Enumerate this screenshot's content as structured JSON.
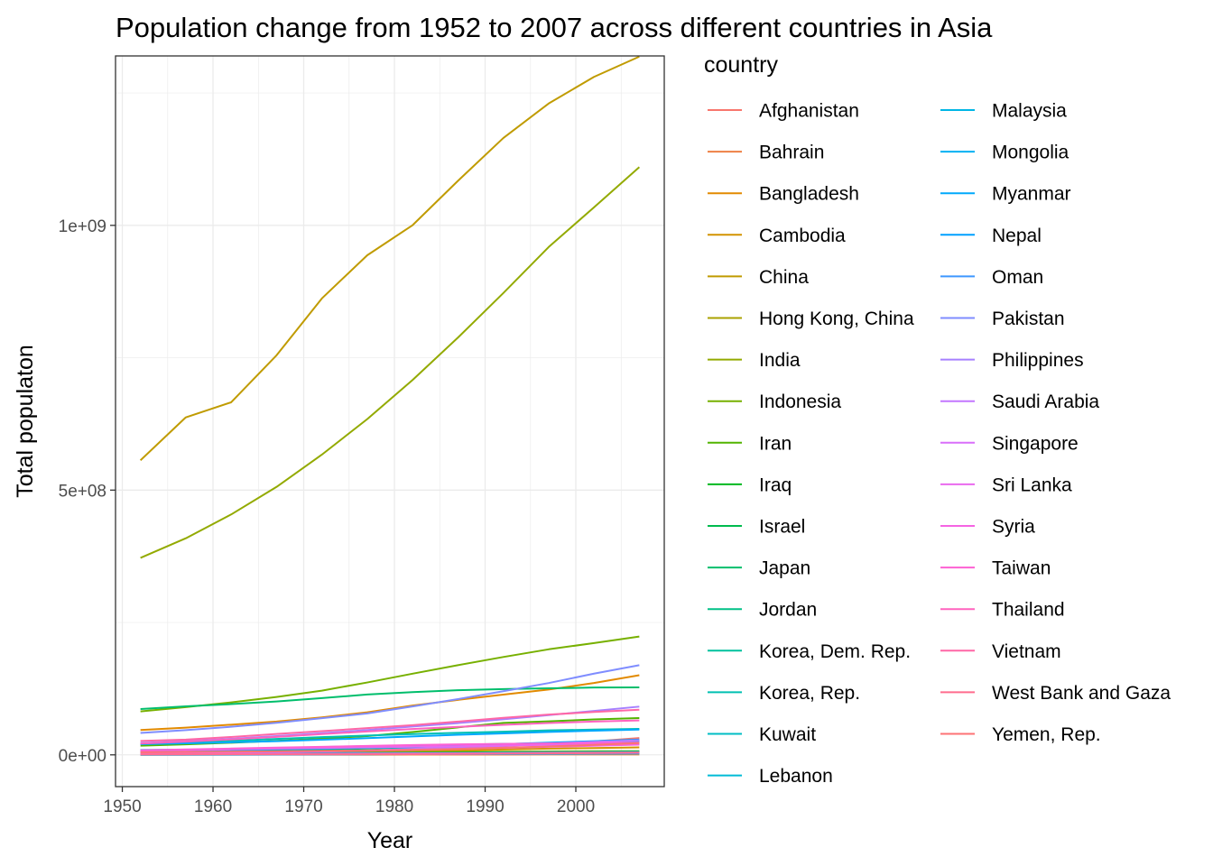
{
  "chart_data": {
    "type": "line",
    "title": "Population change from 1952 to 2007 across different countries in Asia",
    "xlabel": "Year",
    "ylabel": "Total populaton",
    "legend_title": "country",
    "legend_position": "right",
    "grid": true,
    "xlim": [
      1949.25,
      2009.75
    ],
    "ylim": [
      -60000000,
      1320000000
    ],
    "x_ticks": [
      1950,
      1960,
      1970,
      1980,
      1990,
      2000
    ],
    "x_tick_labels": [
      "1950",
      "1960",
      "1970",
      "1980",
      "1990",
      "2000"
    ],
    "y_ticks": [
      0,
      500000000,
      1000000000
    ],
    "y_tick_labels": [
      "0e+00",
      "5e+08",
      "1e+09"
    ],
    "x": [
      1952,
      1957,
      1962,
      1967,
      1972,
      1977,
      1982,
      1987,
      1992,
      1997,
      2002,
      2007
    ],
    "series": [
      {
        "name": "Afghanistan",
        "color": "#F8766D",
        "values": [
          8400000,
          9200000,
          10300000,
          11500000,
          13100000,
          14900000,
          12900000,
          13900000,
          16300000,
          22200000,
          25300000,
          31900000
        ]
      },
      {
        "name": "Bahrain",
        "color": "#EE8044",
        "values": [
          120000,
          140000,
          170000,
          200000,
          230000,
          300000,
          380000,
          450000,
          530000,
          600000,
          660000,
          710000
        ]
      },
      {
        "name": "Bangladesh",
        "color": "#E28A00",
        "values": [
          46900000,
          51400000,
          57000000,
          62800000,
          70800000,
          80400000,
          93100000,
          103800000,
          113700000,
          123300000,
          135700000,
          150400000
        ]
      },
      {
        "name": "Cambodia",
        "color": "#D29300",
        "values": [
          4700000,
          5300000,
          6100000,
          6960000,
          7450000,
          6980000,
          7270000,
          8370000,
          10150000,
          11780000,
          12930000,
          14130000
        ]
      },
      {
        "name": "China",
        "color": "#C09B00",
        "values": [
          556300000,
          637400000,
          665800000,
          754500000,
          862000000,
          943500000,
          1000300000,
          1084000000,
          1164900000,
          1230100000,
          1280400000,
          1318700000
        ]
      },
      {
        "name": "Hong Kong, China",
        "color": "#AAA200",
        "values": [
          2100000,
          2700000,
          3300000,
          3700000,
          4100000,
          4600000,
          5300000,
          5600000,
          6000000,
          6500000,
          6800000,
          7000000
        ]
      },
      {
        "name": "India",
        "color": "#93AA00",
        "values": [
          372000000,
          409000000,
          454000000,
          506000000,
          567000000,
          634000000,
          708000000,
          788000000,
          872000000,
          959000000,
          1034000000,
          1110000000
        ]
      },
      {
        "name": "Indonesia",
        "color": "#77B000",
        "values": [
          82000000,
          90100000,
          99000000,
          109300000,
          121300000,
          136700000,
          153300000,
          169300000,
          184800000,
          199300000,
          211100000,
          223500000
        ]
      },
      {
        "name": "Iran",
        "color": "#52B400",
        "values": [
          17300000,
          19800000,
          22900000,
          26500000,
          30600000,
          35500000,
          43100000,
          51900000,
          60400000,
          63300000,
          66900000,
          69500000
        ]
      },
      {
        "name": "Iraq",
        "color": "#00B81F",
        "values": [
          5400000,
          6200000,
          7200000,
          8500000,
          10100000,
          11900000,
          14200000,
          16500000,
          17900000,
          20800000,
          24000000,
          27500000
        ]
      },
      {
        "name": "Israel",
        "color": "#00BB4E",
        "values": [
          1600000,
          1900000,
          2300000,
          2700000,
          3100000,
          3500000,
          3900000,
          4300000,
          5000000,
          5500000,
          6000000,
          6400000
        ]
      },
      {
        "name": "Japan",
        "color": "#00BE6C",
        "values": [
          86500000,
          91600000,
          95800000,
          100800000,
          107200000,
          113900000,
          118500000,
          122100000,
          124300000,
          125600000,
          127100000,
          127500000
        ]
      },
      {
        "name": "Jordan",
        "color": "#00C086",
        "values": [
          600000,
          750000,
          930000,
          1260000,
          1610000,
          1940000,
          2350000,
          2820000,
          3870000,
          4530000,
          5310000,
          6050000
        ]
      },
      {
        "name": "Korea, Dem. Rep.",
        "color": "#00C19D",
        "values": [
          8900000,
          9400000,
          10900000,
          12600000,
          14800000,
          16300000,
          17600000,
          19100000,
          20700000,
          21600000,
          22200000,
          23300000
        ]
      },
      {
        "name": "Korea, Rep.",
        "color": "#00C0B2",
        "values": [
          20900000,
          22600000,
          26400000,
          30100000,
          33500000,
          36400000,
          39300000,
          41600000,
          43800000,
          46200000,
          47700000,
          49000000
        ]
      },
      {
        "name": "Kuwait",
        "color": "#00BEC5",
        "values": [
          160000,
          210000,
          360000,
          580000,
          840000,
          1140000,
          1500000,
          1890000,
          1420000,
          1770000,
          2110000,
          2510000
        ]
      },
      {
        "name": "Lebanon",
        "color": "#00BBD6",
        "values": [
          1400000,
          1600000,
          1900000,
          2200000,
          2700000,
          3100000,
          3100000,
          3100000,
          3200000,
          3400000,
          3700000,
          4000000
        ]
      },
      {
        "name": "Malaysia",
        "color": "#00B6E5",
        "values": [
          6700000,
          7700000,
          8900000,
          10200000,
          11400000,
          12800000,
          14400000,
          16300000,
          18300000,
          20500000,
          22700000,
          24800000
        ]
      },
      {
        "name": "Mongolia",
        "color": "#00B0F2",
        "values": [
          800000,
          880000,
          1010000,
          1150000,
          1320000,
          1530000,
          1760000,
          2020000,
          2310000,
          2490000,
          2670000,
          2870000
        ]
      },
      {
        "name": "Myanmar",
        "color": "#00A9FC",
        "values": [
          20100000,
          21700000,
          23600000,
          25900000,
          28500000,
          31500000,
          34700000,
          38000000,
          40500000,
          43200000,
          45600000,
          47800000
        ]
      },
      {
        "name": "Nepal",
        "color": "#00A0FF",
        "values": [
          9200000,
          9700000,
          10300000,
          11300000,
          12400000,
          13900000,
          15800000,
          17900000,
          20300000,
          23000000,
          25900000,
          28900000
        ]
      },
      {
        "name": "Oman",
        "color": "#3E97FF",
        "values": [
          510000,
          580000,
          660000,
          760000,
          900000,
          1140000,
          1300000,
          1690000,
          2040000,
          2270000,
          2710000,
          3200000
        ]
      },
      {
        "name": "Pakistan",
        "color": "#7F8DFF",
        "values": [
          41300000,
          46700000,
          53100000,
          60600000,
          69300000,
          78200000,
          91500000,
          105200000,
          120100000,
          135600000,
          153400000,
          169300000
        ]
      },
      {
        "name": "Philippines",
        "color": "#A680FF",
        "values": [
          22400000,
          26100000,
          30300000,
          35400000,
          40900000,
          46900000,
          53500000,
          60000000,
          67200000,
          75000000,
          82900000,
          91100000
        ]
      },
      {
        "name": "Saudi Arabia",
        "color": "#C377FF",
        "values": [
          4000000,
          4500000,
          5100000,
          5800000,
          6500000,
          8100000,
          11300000,
          14800000,
          16900000,
          21200000,
          24500000,
          27600000
        ]
      },
      {
        "name": "Singapore",
        "color": "#D96FFA",
        "values": [
          1100000,
          1400000,
          1700000,
          1900000,
          2200000,
          2300000,
          2600000,
          2800000,
          3200000,
          3800000,
          4200000,
          4600000
        ]
      },
      {
        "name": "Sri Lanka",
        "color": "#EA69EE",
        "values": [
          7900000,
          9100000,
          10400000,
          11700000,
          13000000,
          14100000,
          15400000,
          16500000,
          17600000,
          18700000,
          19600000,
          20400000
        ]
      },
      {
        "name": "Syria",
        "color": "#F564E3",
        "values": [
          3700000,
          4100000,
          4800000,
          5700000,
          6700000,
          7900000,
          9400000,
          11200000,
          13200000,
          15100000,
          17200000,
          19300000
        ]
      },
      {
        "name": "Taiwan",
        "color": "#FD61D3",
        "values": [
          8600000,
          10200000,
          11900000,
          13600000,
          15200000,
          16800000,
          18500000,
          19800000,
          20700000,
          21600000,
          22500000,
          23200000
        ]
      },
      {
        "name": "Thailand",
        "color": "#FF63BE",
        "values": [
          21300000,
          25000000,
          29300000,
          34000000,
          39300000,
          44100000,
          48800000,
          52900000,
          56700000,
          60200000,
          62800000,
          65100000
        ]
      },
      {
        "name": "Vietnam",
        "color": "#FF67A6",
        "values": [
          26200000,
          28900000,
          33800000,
          39500000,
          44700000,
          50500000,
          56100000,
          62800000,
          69900000,
          76000000,
          80900000,
          85300000
        ]
      },
      {
        "name": "West Bank and Gaza",
        "color": "#FF6C8E",
        "values": [
          1000000,
          1100000,
          1100000,
          1140000,
          1090000,
          1260000,
          1420000,
          1690000,
          2100000,
          2830000,
          3390000,
          4020000
        ]
      },
      {
        "name": "Yemen, Rep.",
        "color": "#FD7274",
        "values": [
          4960000,
          5500000,
          6120000,
          6740000,
          7410000,
          8400000,
          9660000,
          11220000,
          13370000,
          15830000,
          18700000,
          22210000
        ]
      }
    ]
  }
}
